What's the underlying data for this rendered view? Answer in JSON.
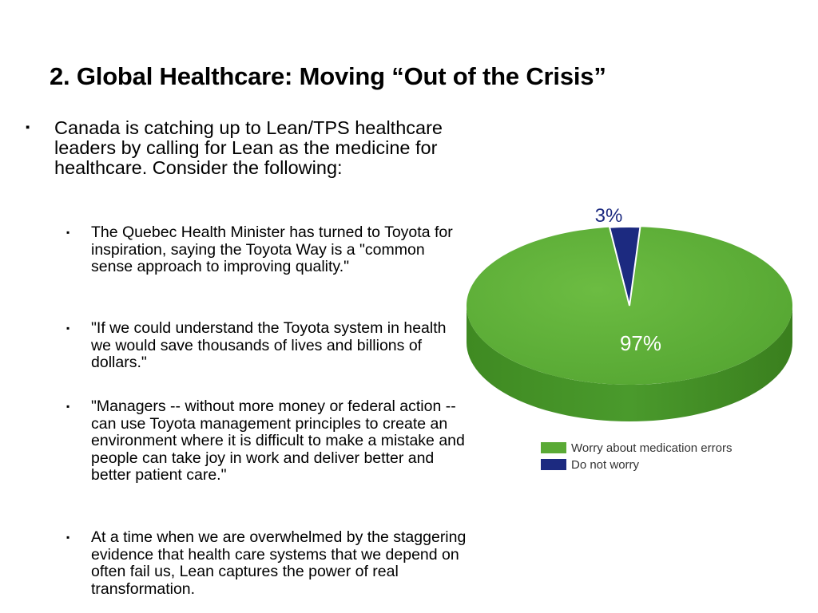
{
  "slide": {
    "title": "2. Global Healthcare: Moving “Out of the Crisis”",
    "bullet_mark": "▪",
    "main_bullet": "Canada is catching up to Lean/TPS healthcare leaders by calling for Lean as the medicine for healthcare. Consider the following:",
    "sub_bullets": [
      "The Quebec Health Minister has turned to Toyota for inspiration, saying the Toyota Way is a \"common sense approach to improving quality.\"",
      "\"If we could understand the Toyota system in health we would save thousands of lives and billions of dollars.\"",
      "\"Managers -- without more money or federal action -- can use Toyota management principles to create an environment where it is difficult to make a mistake and people can take joy in work and deliver better and better patient care.\"",
      "At a time when we are overwhelmed by the staggering evidence that health care systems that we depend on often fail us, Lean captures the power of real transformation."
    ]
  },
  "chart_data": {
    "type": "pie",
    "style": "3d",
    "categories": [
      "Worry about medication errors",
      "Do not worry"
    ],
    "values": [
      97,
      3
    ],
    "data_labels": [
      "97%",
      "3%"
    ],
    "colors": [
      "#5aaa35",
      "#1c2a80"
    ],
    "legend_position": "bottom-right"
  }
}
